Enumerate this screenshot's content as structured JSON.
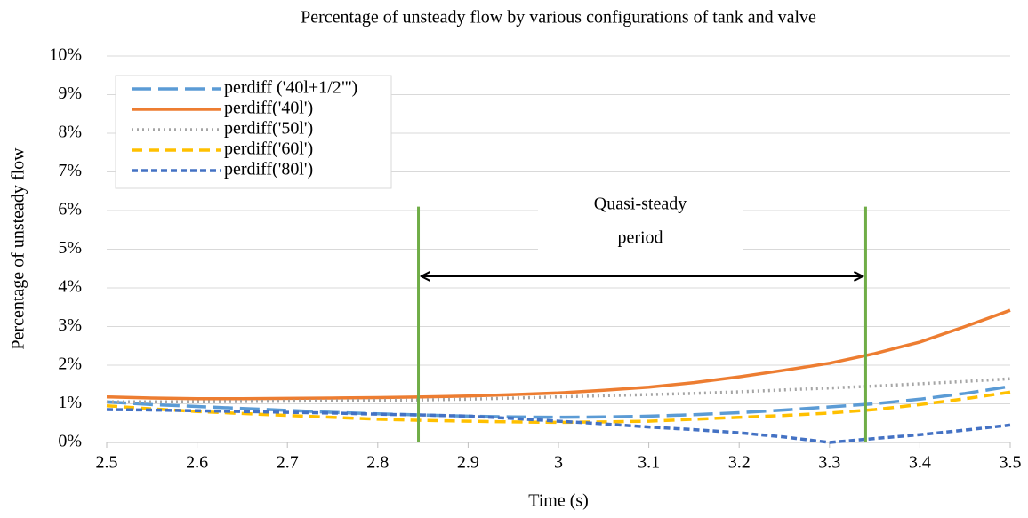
{
  "chart_data": {
    "type": "line",
    "title": "Percentage of unsteady flow by various configurations of tank and valve",
    "xlabel": "Time (s)",
    "ylabel": "Percentage of unsteady flow",
    "x": [
      2.5,
      2.55,
      2.6,
      2.65,
      2.7,
      2.75,
      2.8,
      2.85,
      2.9,
      2.95,
      3.0,
      3.05,
      3.1,
      3.15,
      3.2,
      3.25,
      3.3,
      3.35,
      3.4,
      3.45,
      3.5
    ],
    "series": [
      {
        "name": "perdiff ('40l+1/2\"')",
        "color": "#5b9bd5",
        "dash": "long-dash",
        "values": [
          1.05,
          0.98,
          0.93,
          0.88,
          0.83,
          0.78,
          0.74,
          0.71,
          0.68,
          0.66,
          0.65,
          0.66,
          0.68,
          0.72,
          0.77,
          0.84,
          0.92,
          1.0,
          1.12,
          1.27,
          1.45
        ]
      },
      {
        "name": "perdiff('40l')",
        "color": "#ed7d31",
        "dash": "solid",
        "values": [
          1.18,
          1.15,
          1.13,
          1.13,
          1.14,
          1.15,
          1.16,
          1.18,
          1.2,
          1.24,
          1.28,
          1.35,
          1.43,
          1.55,
          1.7,
          1.87,
          2.05,
          2.3,
          2.6,
          3.0,
          3.42
        ]
      },
      {
        "name": "perdiff('50l')",
        "color": "#a5a5a5",
        "dash": "dotted",
        "values": [
          1.05,
          1.05,
          1.05,
          1.06,
          1.07,
          1.08,
          1.09,
          1.1,
          1.12,
          1.15,
          1.18,
          1.21,
          1.24,
          1.27,
          1.31,
          1.36,
          1.41,
          1.46,
          1.52,
          1.58,
          1.65
        ]
      },
      {
        "name": "perdiff('60l')",
        "color": "#ffc000",
        "dash": "dash",
        "values": [
          0.95,
          0.87,
          0.8,
          0.75,
          0.7,
          0.65,
          0.6,
          0.57,
          0.55,
          0.53,
          0.52,
          0.53,
          0.55,
          0.6,
          0.65,
          0.7,
          0.76,
          0.85,
          0.98,
          1.13,
          1.3
        ]
      },
      {
        "name": "perdiff('80l')",
        "color": "#4472c4",
        "dash": "short-dash",
        "values": [
          0.85,
          0.84,
          0.82,
          0.8,
          0.78,
          0.76,
          0.73,
          0.71,
          0.68,
          0.62,
          0.55,
          0.48,
          0.4,
          0.33,
          0.25,
          0.14,
          0.0,
          0.1,
          0.2,
          0.32,
          0.45
        ]
      }
    ],
    "xlim": [
      2.5,
      3.5
    ],
    "xticks": [
      2.5,
      2.6,
      2.7,
      2.8,
      2.9,
      3,
      3.1,
      3.2,
      3.3,
      3.4,
      3.5
    ],
    "ylim": [
      0,
      10
    ],
    "yticks": [
      {
        "value": 0,
        "label": "0%"
      },
      {
        "value": 1,
        "label": "1%"
      },
      {
        "value": 2,
        "label": "2%"
      },
      {
        "value": 3,
        "label": "3%"
      },
      {
        "value": 4,
        "label": "4%"
      },
      {
        "value": 5,
        "label": "5%"
      },
      {
        "value": 6,
        "label": "6%"
      },
      {
        "value": 7,
        "label": "7%"
      },
      {
        "value": 8,
        "label": "8%"
      },
      {
        "value": 9,
        "label": "9%"
      },
      {
        "value": 10,
        "label": "10%"
      }
    ],
    "grid": true,
    "legend": "upper left",
    "annotation": [
      "Quasi-steady",
      "period"
    ],
    "period_lines": [
      2.845,
      3.34
    ],
    "period_line_top": 6.1,
    "period_line_color": "#70ad47",
    "arrow_y": 4.3
  }
}
